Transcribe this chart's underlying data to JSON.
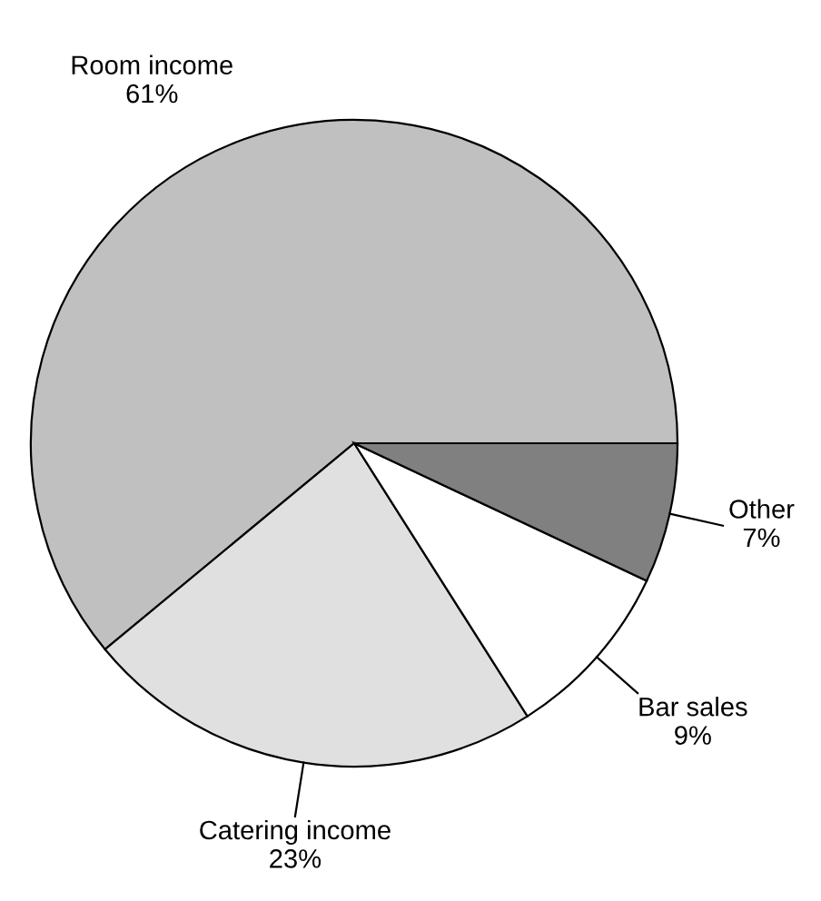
{
  "chart_data": {
    "type": "pie",
    "categories": [
      "Room income",
      "Catering income",
      "Bar sales",
      "Other"
    ],
    "values": [
      61,
      23,
      9,
      7
    ],
    "colors": [
      "#c0c0c0",
      "#e0e0e0",
      "#ffffff",
      "#808080"
    ],
    "value_labels": [
      "61%",
      "23%",
      "9%",
      "7%"
    ],
    "legend": false
  }
}
